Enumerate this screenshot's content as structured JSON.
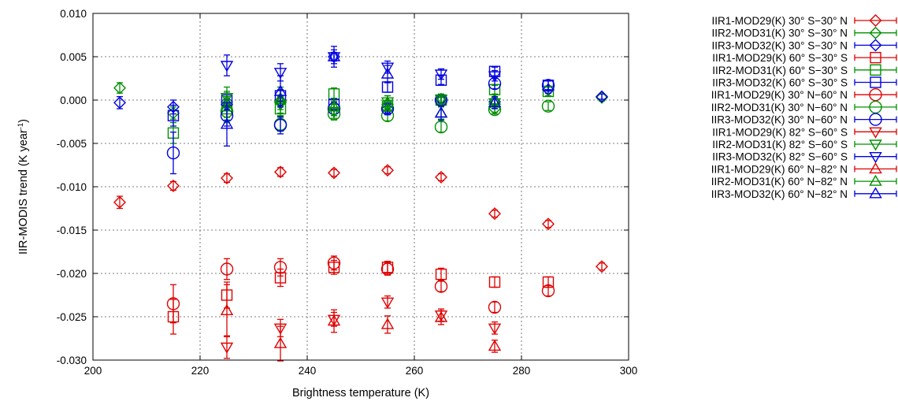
{
  "chart_data": {
    "type": "scatter",
    "xlabel": "Brightness temperature (K)",
    "ylabel": "IIR-MODIS  trend (K year",
    "ylabel_sup": "-1",
    "ylabel_end": ")",
    "xlim": [
      200,
      300
    ],
    "ylim": [
      -0.03,
      0.01
    ],
    "x_ticks": [
      200,
      220,
      240,
      260,
      280,
      300
    ],
    "x_tick_labels": [
      "200",
      "220",
      "240",
      "260",
      "280",
      "300"
    ],
    "y_ticks": [
      0.01,
      0.005,
      0.0,
      -0.005,
      -0.01,
      -0.015,
      -0.02,
      -0.025,
      -0.03
    ],
    "y_tick_labels": [
      "0.010",
      "0.005",
      "0.000",
      "-0.005",
      "-0.010",
      "-0.015",
      "-0.020",
      "-0.025",
      "-0.030"
    ],
    "grid": true,
    "legend_position": "right",
    "colors": {
      "IIR1": "#e00000",
      "IIR2": "#009000",
      "IIR3": "#0000e0"
    },
    "series": [
      {
        "name": "IIR1-MOD29(K) 30° S−30° N",
        "color": "#e00000",
        "marker": "diamond",
        "points": [
          [
            205,
            -0.0118,
            0.0007
          ],
          [
            215,
            -0.0099,
            0.0005
          ],
          [
            225,
            -0.009,
            0.0005
          ],
          [
            235,
            -0.0083,
            0.0005
          ],
          [
            245,
            -0.0084,
            0.0004
          ],
          [
            255,
            -0.0081,
            0.0004
          ],
          [
            265,
            -0.0089,
            0.0004
          ],
          [
            275,
            -0.0131,
            0.0004
          ],
          [
            285,
            -0.0143,
            0.0004
          ],
          [
            295,
            -0.0192,
            0.0004
          ]
        ]
      },
      {
        "name": "IIR2-MOD31(K) 30° S−30° N",
        "color": "#009000",
        "marker": "diamond",
        "points": [
          [
            205,
            0.0014,
            0.0006
          ],
          [
            215,
            -0.0015,
            0.0007
          ],
          [
            225,
            -0.0002,
            0.0006
          ],
          [
            235,
            -0.0003,
            0.0005
          ],
          [
            245,
            -0.0007,
            0.0005
          ],
          [
            255,
            -0.0005,
            0.0005
          ],
          [
            265,
            -0.0001,
            0.0004
          ],
          [
            275,
            -0.001,
            0.0004
          ],
          [
            285,
            0.0012,
            0.0004
          ],
          [
            295,
            0.0003,
            0.0004
          ]
        ]
      },
      {
        "name": "IIR3-MOD32(K) 30° S−30° N",
        "color": "#0000e0",
        "marker": "diamond",
        "points": [
          [
            205,
            -0.0003,
            0.0007
          ],
          [
            215,
            -0.0008,
            0.0008
          ],
          [
            225,
            -0.0005,
            0.0006
          ],
          [
            235,
            -0.0001,
            0.0005
          ],
          [
            245,
            0.005,
            0.0005
          ],
          [
            255,
            -0.001,
            0.0005
          ],
          [
            265,
            0.0001,
            0.0004
          ],
          [
            275,
            -0.0002,
            0.0004
          ],
          [
            285,
            0.0012,
            0.0004
          ],
          [
            295,
            0.0004,
            0.0003
          ]
        ]
      },
      {
        "name": "IIR1-MOD29(K) 60° S−30° S",
        "color": "#e00000",
        "marker": "square",
        "points": [
          [
            215,
            -0.025,
            0.002
          ],
          [
            225,
            -0.0225,
            0.0015
          ],
          [
            235,
            -0.0205,
            0.001
          ],
          [
            245,
            -0.0193,
            0.0008
          ],
          [
            255,
            -0.0193,
            0.0007
          ],
          [
            265,
            -0.0201,
            0.0007
          ],
          [
            275,
            -0.021,
            0.0006
          ],
          [
            285,
            -0.021,
            0.0006
          ]
        ]
      },
      {
        "name": "IIR2-MOD31(K) 60° S−30° S",
        "color": "#009000",
        "marker": "square",
        "points": [
          [
            215,
            -0.0038,
            0.0012
          ],
          [
            225,
            -0.001,
            0.001
          ],
          [
            235,
            -0.001,
            0.0008
          ],
          [
            245,
            0.0007,
            0.0007
          ],
          [
            255,
            -0.0007,
            0.0006
          ],
          [
            265,
            0.0,
            0.0005
          ],
          [
            275,
            0.0012,
            0.0005
          ],
          [
            285,
            0.001,
            0.0005
          ]
        ]
      },
      {
        "name": "IIR3-MOD32(K) 60° S−30° S",
        "color": "#0000e0",
        "marker": "square",
        "points": [
          [
            215,
            -0.0018,
            0.0012
          ],
          [
            225,
            0.0,
            0.0008
          ],
          [
            235,
            0.0005,
            0.0007
          ],
          [
            245,
            -0.0005,
            0.0007
          ],
          [
            255,
            0.0015,
            0.0006
          ],
          [
            265,
            0.0023,
            0.0005
          ],
          [
            275,
            0.0033,
            0.0005
          ],
          [
            285,
            0.0017,
            0.0005
          ]
        ]
      },
      {
        "name": "IIR1-MOD29(K) 30° N−60° N",
        "color": "#e00000",
        "marker": "circle",
        "points": [
          [
            215,
            -0.0235,
            0.0022
          ],
          [
            225,
            -0.0195,
            0.0012
          ],
          [
            235,
            -0.0193,
            0.001
          ],
          [
            245,
            -0.0188,
            0.0008
          ],
          [
            255,
            -0.0195,
            0.0007
          ],
          [
            265,
            -0.0215,
            0.0006
          ],
          [
            275,
            -0.0239,
            0.0006
          ],
          [
            285,
            -0.022,
            0.0006
          ]
        ]
      },
      {
        "name": "IIR2-MOD31(K) 30° N−60° N",
        "color": "#009000",
        "marker": "circle",
        "points": [
          [
            225,
            -0.0013,
            0.001
          ],
          [
            235,
            -0.0028,
            0.0008
          ],
          [
            245,
            -0.0016,
            0.0007
          ],
          [
            255,
            -0.0018,
            0.0006
          ],
          [
            265,
            -0.0031,
            0.0006
          ],
          [
            275,
            -0.0011,
            0.0005
          ],
          [
            285,
            -0.0007,
            0.0005
          ]
        ]
      },
      {
        "name": "IIR3-MOD32(K) 30° N−60° N",
        "color": "#0000e0",
        "marker": "circle",
        "points": [
          [
            215,
            -0.0061,
            0.0024
          ],
          [
            225,
            -0.0018,
            0.0012
          ],
          [
            235,
            -0.0029,
            0.001
          ],
          [
            245,
            -0.001,
            0.0008
          ],
          [
            255,
            -0.001,
            0.0007
          ],
          [
            265,
            0.0,
            0.0006
          ],
          [
            275,
            0.0019,
            0.0006
          ],
          [
            285,
            0.0017,
            0.0005
          ]
        ]
      },
      {
        "name": "IIR1-MOD29(K) 82° S−60° S",
        "color": "#e00000",
        "marker": "triangle-down",
        "points": [
          [
            225,
            -0.0285,
            0.0013
          ],
          [
            235,
            -0.0263,
            0.001
          ],
          [
            245,
            -0.0253,
            0.0008
          ],
          [
            255,
            -0.0233,
            0.0007
          ],
          [
            265,
            -0.0248,
            0.0007
          ],
          [
            275,
            -0.0263,
            0.0007
          ]
        ]
      },
      {
        "name": "IIR2-MOD31(K) 82° S−60° S",
        "color": "#009000",
        "marker": "triangle-down",
        "points": [
          [
            225,
            0.0003,
            0.0012
          ],
          [
            235,
            -0.0005,
            0.001
          ],
          [
            245,
            -0.0013,
            0.0008
          ],
          [
            255,
            -0.0002,
            0.0007
          ],
          [
            265,
            0.0001,
            0.0006
          ],
          [
            275,
            -0.0003,
            0.0006
          ]
        ]
      },
      {
        "name": "IIR3-MOD32(K) 82° S−60° S",
        "color": "#0000e0",
        "marker": "triangle-down",
        "points": [
          [
            225,
            0.004,
            0.0012
          ],
          [
            235,
            0.0032,
            0.001
          ],
          [
            245,
            0.005,
            0.0008
          ],
          [
            255,
            0.0038,
            0.0007
          ],
          [
            265,
            0.003,
            0.0006
          ],
          [
            275,
            0.0028,
            0.0006
          ]
        ]
      },
      {
        "name": "IIR1-MOD29(K) 60° N−82° N",
        "color": "#e00000",
        "marker": "triangle-up",
        "points": [
          [
            225,
            -0.0243,
            0.003
          ],
          [
            235,
            -0.0281,
            0.002
          ],
          [
            245,
            -0.0255,
            0.0013
          ],
          [
            255,
            -0.0259,
            0.001
          ],
          [
            265,
            -0.0251,
            0.0008
          ],
          [
            275,
            -0.0284,
            0.0007
          ]
        ]
      },
      {
        "name": "IIR2-MOD31(K) 60° N−82° N",
        "color": "#009000",
        "marker": "triangle-up",
        "points": [
          [
            225,
            -0.0008,
            0.0018
          ],
          [
            235,
            0.0002,
            0.0013
          ],
          [
            245,
            -0.0008,
            0.001
          ],
          [
            255,
            -0.0003,
            0.0008
          ],
          [
            265,
            -0.0015,
            0.0007
          ],
          [
            275,
            0.0,
            0.0006
          ]
        ]
      },
      {
        "name": "IIR3-MOD32(K) 60° N−82° N",
        "color": "#0000e0",
        "marker": "triangle-up",
        "points": [
          [
            225,
            -0.0028,
            0.0025
          ],
          [
            235,
            0.001,
            0.0018
          ],
          [
            245,
            0.005,
            0.0012
          ],
          [
            255,
            0.003,
            0.001
          ],
          [
            265,
            -0.0015,
            0.0008
          ],
          [
            275,
            -0.0003,
            0.0007
          ]
        ]
      }
    ]
  }
}
